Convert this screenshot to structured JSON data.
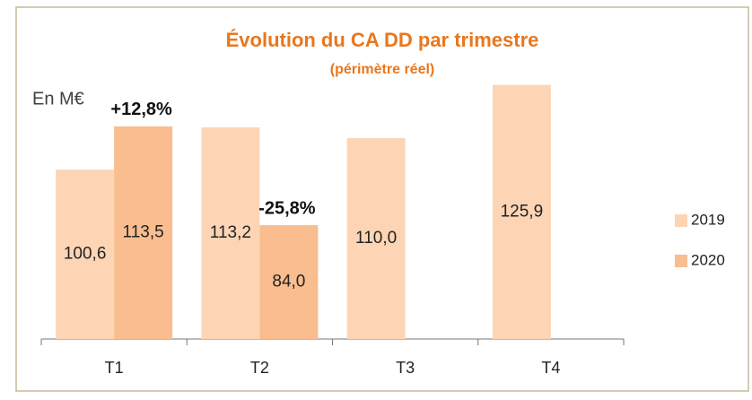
{
  "chart_data": {
    "type": "bar",
    "title": "Évolution du CA DD par trimestre",
    "subtitle": "(périmètre réel)",
    "unit_label": "En M€",
    "categories": [
      "T1",
      "T2",
      "T3",
      "T4"
    ],
    "series": [
      {
        "name": "2019",
        "color": "#fdd5b5",
        "values": [
          100.6,
          113.2,
          110.0,
          125.9
        ],
        "value_labels": [
          "100,6",
          "113,2",
          "110,0",
          "125,9"
        ]
      },
      {
        "name": "2020",
        "color": "#f9bd8f",
        "values": [
          113.5,
          84.0,
          null,
          null
        ],
        "value_labels": [
          "113,5",
          "84,0",
          null,
          null
        ]
      }
    ],
    "annotations": [
      "+12,8%",
      "-25,8%"
    ],
    "ylim": [
      50,
      140
    ],
    "legend": "right"
  }
}
